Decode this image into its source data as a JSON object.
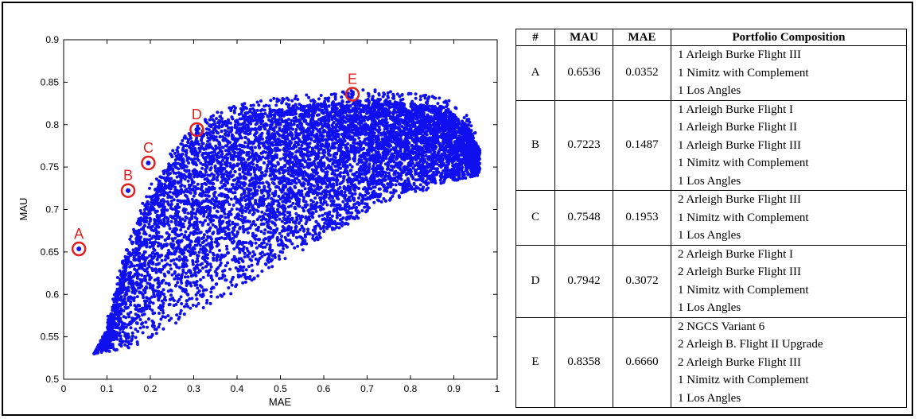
{
  "chart_data": {
    "type": "scatter",
    "xlabel": "MAE",
    "ylabel": "MAU",
    "xlim": [
      0,
      1
    ],
    "ylim": [
      0.5,
      0.9
    ],
    "xticks": [
      "0",
      "0.1",
      "0.2",
      "0.3",
      "0.4",
      "0.5",
      "0.6",
      "0.7",
      "0.8",
      "0.9",
      "1"
    ],
    "yticks": [
      "0.5",
      "0.55",
      "0.6",
      "0.65",
      "0.7",
      "0.75",
      "0.8",
      "0.85",
      "0.9"
    ],
    "point_color": "#1010ee",
    "highlight_color": "#e02020",
    "cloud_envelope": {
      "upper": [
        [
          0.07,
          0.53
        ],
        [
          0.1,
          0.56
        ],
        [
          0.13,
          0.62
        ],
        [
          0.17,
          0.68
        ],
        [
          0.2,
          0.72
        ],
        [
          0.24,
          0.75
        ],
        [
          0.28,
          0.775
        ],
        [
          0.34,
          0.8
        ],
        [
          0.42,
          0.815
        ],
        [
          0.5,
          0.82
        ],
        [
          0.6,
          0.825
        ],
        [
          0.7,
          0.83
        ],
        [
          0.8,
          0.825
        ],
        [
          0.88,
          0.82
        ],
        [
          0.93,
          0.8
        ],
        [
          0.96,
          0.77
        ]
      ],
      "lower": [
        [
          0.07,
          0.53
        ],
        [
          0.15,
          0.535
        ],
        [
          0.25,
          0.56
        ],
        [
          0.35,
          0.59
        ],
        [
          0.45,
          0.62
        ],
        [
          0.55,
          0.65
        ],
        [
          0.65,
          0.68
        ],
        [
          0.75,
          0.71
        ],
        [
          0.85,
          0.725
        ],
        [
          0.92,
          0.735
        ],
        [
          0.96,
          0.74
        ]
      ]
    },
    "highlighted_points": [
      {
        "label": "A",
        "x": 0.0352,
        "y": 0.6536
      },
      {
        "label": "B",
        "x": 0.1487,
        "y": 0.7223
      },
      {
        "label": "C",
        "x": 0.1953,
        "y": 0.7548
      },
      {
        "label": "D",
        "x": 0.3072,
        "y": 0.7942
      },
      {
        "label": "E",
        "x": 0.666,
        "y": 0.8358
      }
    ],
    "table": {
      "headers": [
        "#",
        "MAU",
        "MAE",
        "Portfolio Composition"
      ],
      "rows": [
        {
          "id": "A",
          "mau": "0.6536",
          "mae": "0.0352",
          "composition": [
            "1 Arleigh Burke Flight III",
            "1 Nimitz with Complement",
            "1 Los Angles"
          ]
        },
        {
          "id": "B",
          "mau": "0.7223",
          "mae": "0.1487",
          "composition": [
            "1 Arleigh Burke Flight I",
            "1 Arleigh Burke Flight II",
            "1 Arleigh Burke Flight III",
            "1 Nimitz with Complement",
            "1 Los Angles"
          ]
        },
        {
          "id": "C",
          "mau": "0.7548",
          "mae": "0.1953",
          "composition": [
            "2 Arleigh Burke Flight III",
            "1 Nimitz with Complement",
            "1 Los Angles"
          ]
        },
        {
          "id": "D",
          "mau": "0.7942",
          "mae": "0.3072",
          "composition": [
            "2 Arleigh Burke Flight I",
            "2 Arleigh Burke Flight III",
            "1 Nimitz with Complement",
            "1 Los Angles"
          ]
        },
        {
          "id": "E",
          "mau": "0.8358",
          "mae": "0.6660",
          "composition": [
            "2 NGCS Variant 6",
            "2 Arleigh B. Flight II Upgrade",
            "2 Arleigh Burke Flight III",
            "1 Nimitz with Complement",
            "1 Los Angles"
          ]
        }
      ]
    }
  }
}
